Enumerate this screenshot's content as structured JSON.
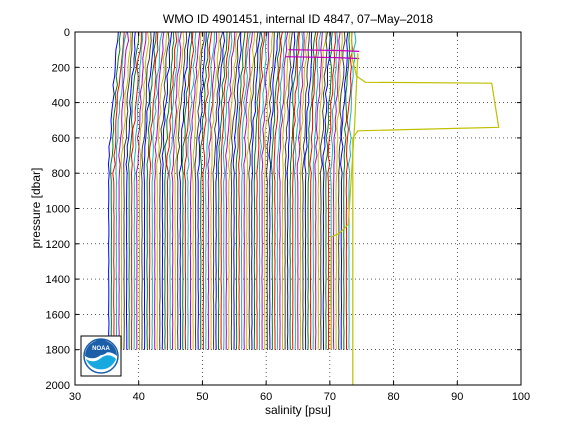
{
  "chart_data": {
    "type": "line",
    "title": "WMO ID 4901451, internal ID 4847, 07–May–2018",
    "xlabel": "salinity [psu]",
    "ylabel": "pressure [dbar]",
    "xlim": [
      30,
      100
    ],
    "ylim": [
      2000,
      0
    ],
    "y_reversed": true,
    "grid": true,
    "xticks": [
      30,
      40,
      50,
      60,
      70,
      80,
      90,
      100
    ],
    "yticks": [
      0,
      200,
      400,
      600,
      800,
      1000,
      1200,
      1400,
      1600,
      1800,
      2000
    ],
    "profiles": {
      "count": 95,
      "deep_salinity_start": 35.3,
      "deep_salinity_end": 73.0,
      "surface_offset_start": 1.5,
      "surface_offset_end": 1.0,
      "max_pressure": 1800,
      "colors": [
        "#0000ff",
        "#008000",
        "#ff0000",
        "#00bfbf",
        "#bf00bf",
        "#bfbf00",
        "#404040"
      ]
    },
    "series": [
      {
        "color": "#bfbf00",
        "points": [
          [
            73.4,
            0
          ],
          [
            73.5,
            150
          ],
          [
            74.2,
            250
          ],
          [
            75.6,
            285
          ],
          [
            95.4,
            290
          ],
          [
            96.5,
            540
          ],
          [
            74.4,
            560
          ],
          [
            73.6,
            600
          ],
          [
            73.6,
            2000
          ]
        ]
      },
      {
        "color": "#bf00bf",
        "points": [
          [
            63.5,
            100
          ],
          [
            71.4,
            105
          ],
          [
            74.6,
            110
          ]
        ]
      },
      {
        "color": "#bf00bf",
        "points": [
          [
            63.0,
            140
          ],
          [
            71.1,
            145
          ],
          [
            74.6,
            150
          ]
        ]
      },
      {
        "color": "#bfbf00",
        "points": [
          [
            74.4,
            120
          ],
          [
            73.9,
            520
          ],
          [
            72.9,
            1090
          ],
          [
            71.5,
            1140
          ],
          [
            70.3,
            1160
          ],
          [
            70.2,
            1800
          ]
        ]
      }
    ]
  },
  "logo": {
    "text": "NOAA",
    "color": "#1a5fa8"
  }
}
